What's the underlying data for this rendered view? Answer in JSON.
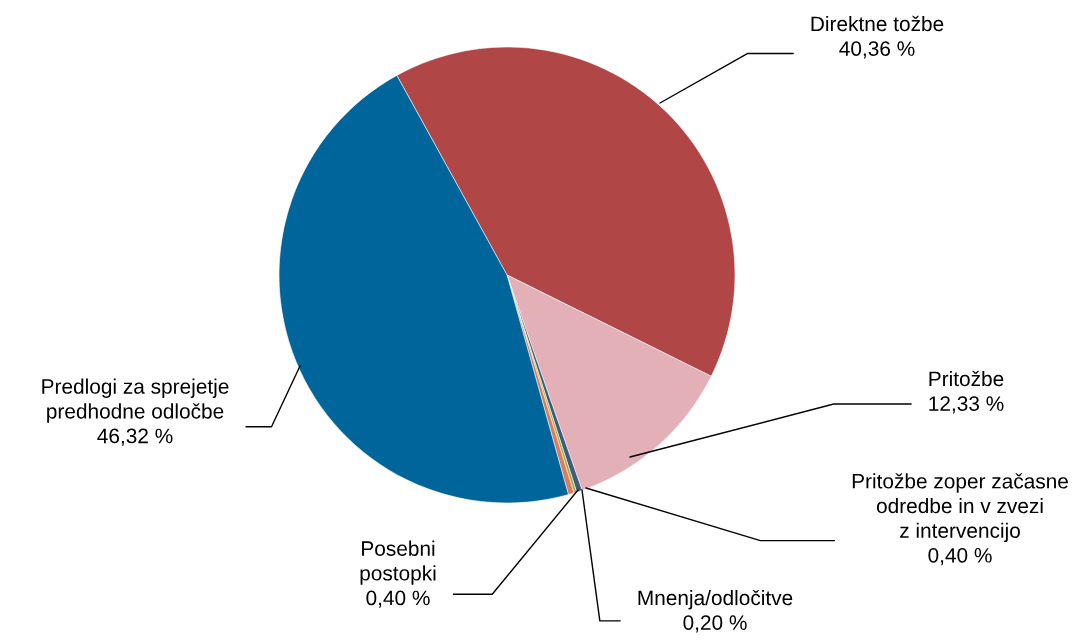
{
  "chart_data": {
    "type": "pie",
    "categories": [
      "Direktne tožbe",
      "Pritožbe",
      "Pritožbe zoper začasne\nodredbe in v zvezi\nz intervencijo",
      "Mnenja/odločitve",
      "Posebni\npostopki",
      "Predlogi za sprejetje\npredhodne odločbe"
    ],
    "values": [
      40.36,
      12.33,
      0.4,
      0.2,
      0.4,
      46.32
    ],
    "value_labels": [
      "40,36 %",
      "12,33 %",
      "0,40 %",
      "0,20 %",
      "0,40 %",
      "46,32 %"
    ],
    "colors": [
      "#b04646",
      "#e2b0b6",
      "#3f5a7a",
      "#a0b040",
      "#e07a5f",
      "#00659a"
    ]
  }
}
